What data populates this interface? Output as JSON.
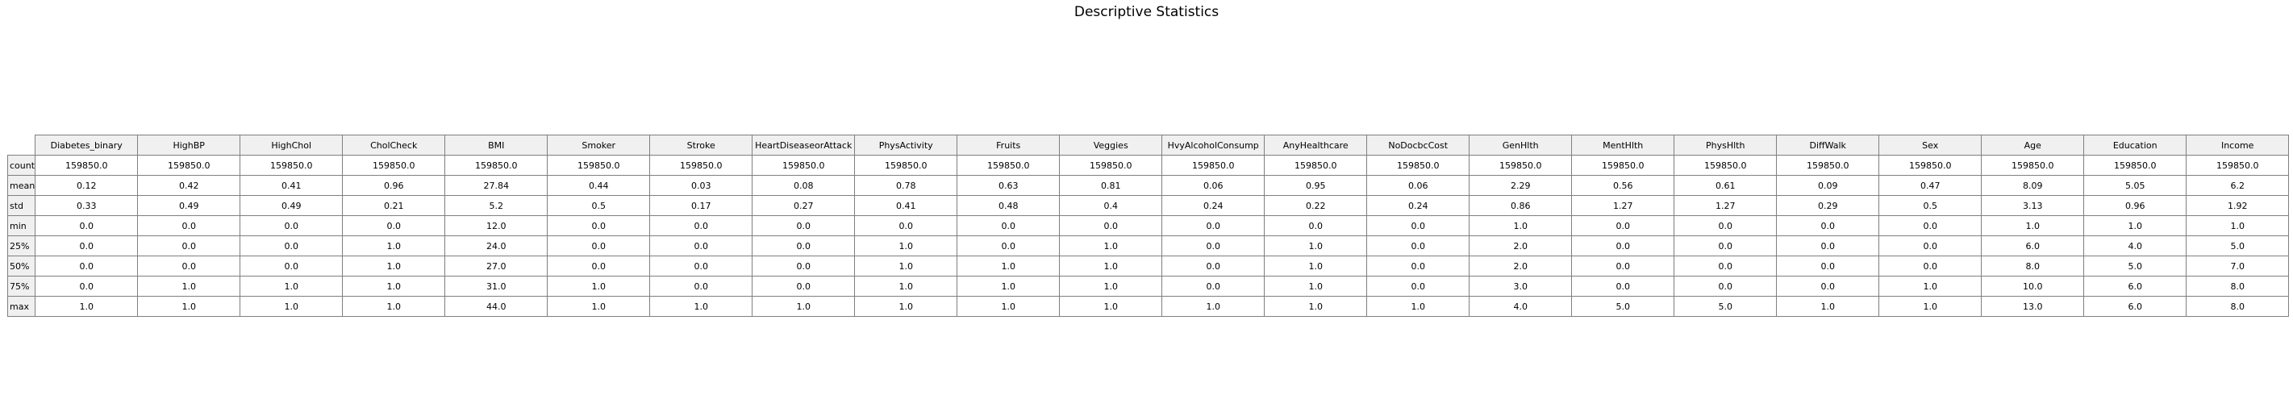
{
  "chart_data": {
    "type": "table",
    "title": "Descriptive Statistics",
    "columns": [
      "Diabetes_binary",
      "HighBP",
      "HighChol",
      "CholCheck",
      "BMI",
      "Smoker",
      "Stroke",
      "HeartDiseaseorAttack",
      "PhysActivity",
      "Fruits",
      "Veggies",
      "HvyAlcoholConsump",
      "AnyHealthcare",
      "NoDocbcCost",
      "GenHlth",
      "MentHlth",
      "PhysHlth",
      "DiffWalk",
      "Sex",
      "Age",
      "Education",
      "Income"
    ],
    "rows": [
      {
        "label": "count",
        "values": [
          "159850.0",
          "159850.0",
          "159850.0",
          "159850.0",
          "159850.0",
          "159850.0",
          "159850.0",
          "159850.0",
          "159850.0",
          "159850.0",
          "159850.0",
          "159850.0",
          "159850.0",
          "159850.0",
          "159850.0",
          "159850.0",
          "159850.0",
          "159850.0",
          "159850.0",
          "159850.0",
          "159850.0",
          "159850.0"
        ]
      },
      {
        "label": "mean",
        "values": [
          "0.12",
          "0.42",
          "0.41",
          "0.96",
          "27.84",
          "0.44",
          "0.03",
          "0.08",
          "0.78",
          "0.63",
          "0.81",
          "0.06",
          "0.95",
          "0.06",
          "2.29",
          "0.56",
          "0.61",
          "0.09",
          "0.47",
          "8.09",
          "5.05",
          "6.2"
        ]
      },
      {
        "label": "std",
        "values": [
          "0.33",
          "0.49",
          "0.49",
          "0.21",
          "5.2",
          "0.5",
          "0.17",
          "0.27",
          "0.41",
          "0.48",
          "0.4",
          "0.24",
          "0.22",
          "0.24",
          "0.86",
          "1.27",
          "1.27",
          "0.29",
          "0.5",
          "3.13",
          "0.96",
          "1.92"
        ]
      },
      {
        "label": "min",
        "values": [
          "0.0",
          "0.0",
          "0.0",
          "0.0",
          "12.0",
          "0.0",
          "0.0",
          "0.0",
          "0.0",
          "0.0",
          "0.0",
          "0.0",
          "0.0",
          "0.0",
          "1.0",
          "0.0",
          "0.0",
          "0.0",
          "0.0",
          "1.0",
          "1.0",
          "1.0"
        ]
      },
      {
        "label": "25%",
        "values": [
          "0.0",
          "0.0",
          "0.0",
          "1.0",
          "24.0",
          "0.0",
          "0.0",
          "0.0",
          "1.0",
          "0.0",
          "1.0",
          "0.0",
          "1.0",
          "0.0",
          "2.0",
          "0.0",
          "0.0",
          "0.0",
          "0.0",
          "6.0",
          "4.0",
          "5.0"
        ]
      },
      {
        "label": "50%",
        "values": [
          "0.0",
          "0.0",
          "0.0",
          "1.0",
          "27.0",
          "0.0",
          "0.0",
          "0.0",
          "1.0",
          "1.0",
          "1.0",
          "0.0",
          "1.0",
          "0.0",
          "2.0",
          "0.0",
          "0.0",
          "0.0",
          "0.0",
          "8.0",
          "5.0",
          "7.0"
        ]
      },
      {
        "label": "75%",
        "values": [
          "0.0",
          "1.0",
          "1.0",
          "1.0",
          "31.0",
          "1.0",
          "0.0",
          "0.0",
          "1.0",
          "1.0",
          "1.0",
          "0.0",
          "1.0",
          "0.0",
          "3.0",
          "0.0",
          "0.0",
          "0.0",
          "1.0",
          "10.0",
          "6.0",
          "8.0"
        ]
      },
      {
        "label": "max",
        "values": [
          "1.0",
          "1.0",
          "1.0",
          "1.0",
          "44.0",
          "1.0",
          "1.0",
          "1.0",
          "1.0",
          "1.0",
          "1.0",
          "1.0",
          "1.0",
          "1.0",
          "4.0",
          "5.0",
          "5.0",
          "1.0",
          "1.0",
          "13.0",
          "6.0",
          "8.0"
        ]
      }
    ]
  }
}
